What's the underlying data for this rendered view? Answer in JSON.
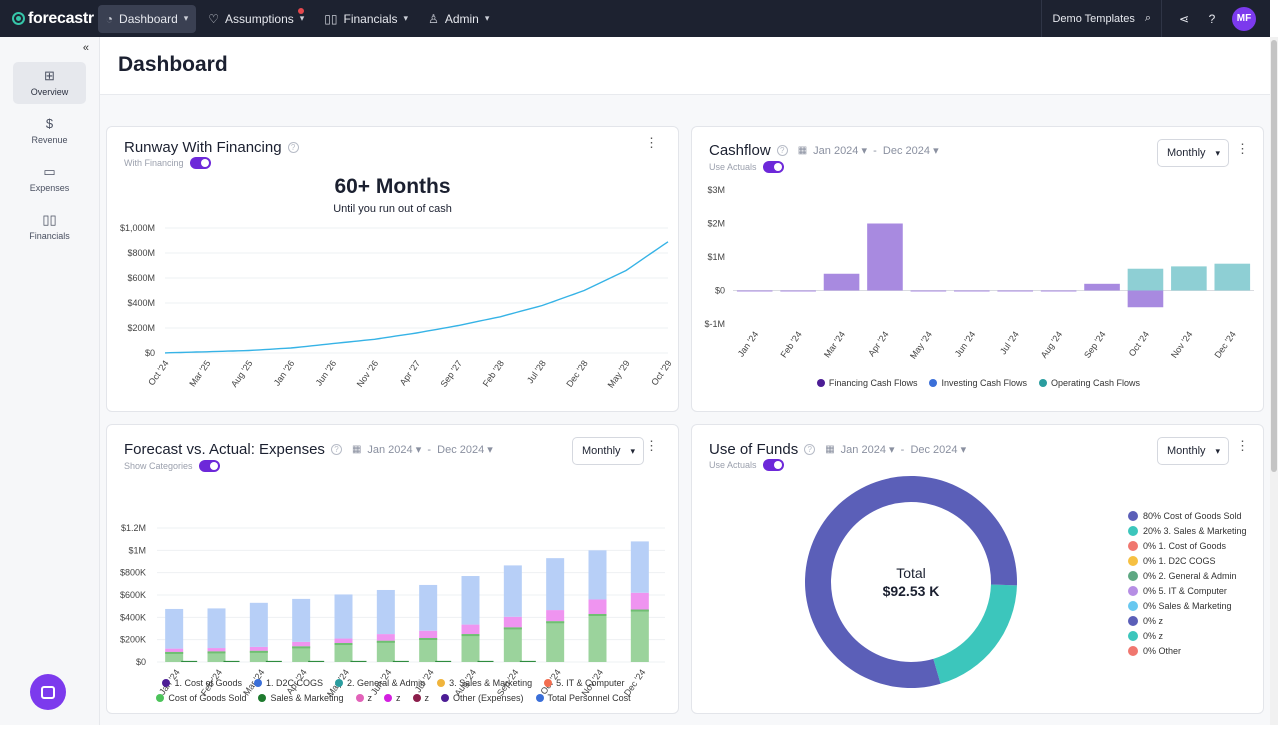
{
  "app": {
    "brand": "forecastr"
  },
  "nav": {
    "items": [
      {
        "label": "Dashboard",
        "icon": "gauge-icon",
        "active": true
      },
      {
        "label": "Assumptions",
        "icon": "lightbulb-icon",
        "active": false
      },
      {
        "label": "Financials",
        "icon": "book-icon",
        "active": false
      },
      {
        "label": "Admin",
        "icon": "user-gear-icon",
        "active": false
      }
    ],
    "templates_label": "Demo Templates",
    "avatar_initials": "MF"
  },
  "sidebar": {
    "items": [
      {
        "label": "Overview",
        "icon": "grid-icon"
      },
      {
        "label": "Revenue",
        "icon": "dollar-icon"
      },
      {
        "label": "Expenses",
        "icon": "card-icon"
      },
      {
        "label": "Financials",
        "icon": "book-icon"
      }
    ]
  },
  "page": {
    "title": "Dashboard"
  },
  "runway": {
    "title": "Runway With Financing",
    "toggle_label": "With Financing",
    "big_number": "60+ Months",
    "big_sub": "Until you run out of cash"
  },
  "cashflow": {
    "title": "Cashflow",
    "date_start": "Jan 2024",
    "date_sep": "-",
    "date_end": "Dec 2024",
    "toggle_label": "Use Actuals",
    "period": "Monthly"
  },
  "expenses": {
    "title": "Forecast vs. Actual: Expenses",
    "date_start": "Jan 2024",
    "date_sep": "-",
    "date_end": "Dec 2024",
    "toggle_label": "Show Categories",
    "period": "Monthly"
  },
  "funds": {
    "title": "Use of Funds",
    "date_start": "Jan 2024",
    "date_sep": "-",
    "date_end": "Dec 2024",
    "toggle_label": "Use Actuals",
    "period": "Monthly",
    "total_label": "Total",
    "total_value": "$92.53 K"
  },
  "chart_data": [
    {
      "id": "runway",
      "type": "line",
      "title": "Runway With Financing",
      "categories": [
        "Oct '24",
        "Mar '25",
        "Aug '25",
        "Jan '26",
        "Jun '26",
        "Nov '26",
        "Apr '27",
        "Sep '27",
        "Feb '28",
        "Jul '28",
        "Dec '28",
        "May '29",
        "Oct '29"
      ],
      "y_ticks": [
        "$0",
        "$200M",
        "$400M",
        "$600M",
        "$800M",
        "$1,000M"
      ],
      "ylim": [
        0,
        1000
      ],
      "series": [
        {
          "name": "Cash",
          "color": "#36b3e6",
          "values": [
            1,
            10,
            20,
            40,
            75,
            110,
            160,
            220,
            290,
            380,
            500,
            660,
            890
          ]
        }
      ]
    },
    {
      "id": "cashflow",
      "type": "bar",
      "title": "Cashflow",
      "categories": [
        "Jan '24",
        "Feb '24",
        "Mar '24",
        "Apr '24",
        "May '24",
        "Jun '24",
        "Jul '24",
        "Aug '24",
        "Sep '24",
        "Oct '24",
        "Nov '24",
        "Dec '24"
      ],
      "y_ticks": [
        "$-1M",
        "$0",
        "$1M",
        "$2M",
        "$3M"
      ],
      "ylim": [
        -1,
        3
      ],
      "series": [
        {
          "name": "Financing Cash Flows",
          "color": "#4c1d95",
          "values": [
            -0.02,
            -0.02,
            0.5,
            2.0,
            -0.01,
            -0.02,
            -0.02,
            -0.02,
            0.2,
            -0.5,
            0,
            0
          ]
        },
        {
          "name": "Investing Cash Flows",
          "color": "#3b6fd8",
          "values": [
            0,
            0,
            0,
            0,
            0,
            0,
            0,
            0,
            0,
            0,
            0,
            0
          ]
        },
        {
          "name": "Operating Cash Flows",
          "color": "#2a9d9f",
          "values": [
            0,
            0,
            0,
            0,
            0,
            0,
            0,
            0,
            0,
            0.65,
            0.72,
            0.8
          ]
        }
      ]
    },
    {
      "id": "expenses",
      "type": "bar",
      "title": "Forecast vs. Actual: Expenses",
      "categories": [
        "Jan '24",
        "Feb '24",
        "Mar '24",
        "Apr '24",
        "May '24",
        "Jun '24",
        "Jul '24",
        "Aug '24",
        "Sep '24",
        "Oct '24",
        "Nov '24",
        "Dec '24"
      ],
      "y_ticks": [
        "$0",
        "$200K",
        "$400K",
        "$600K",
        "$800K",
        "$1M",
        "$1.2M"
      ],
      "ylim": [
        0,
        1200
      ],
      "forecast_stack": {
        "cogs": [
          90,
          95,
          100,
          140,
          170,
          190,
          215,
          250,
          310,
          365,
          430,
          470
        ],
        "sales_marketing": [
          30,
          30,
          35,
          40,
          40,
          60,
          65,
          85,
          95,
          100,
          130,
          150
        ],
        "personnel": [
          355,
          355,
          395,
          385,
          395,
          395,
          410,
          435,
          460,
          465,
          440,
          460
        ]
      },
      "actual_values": [
        10,
        10,
        10,
        10,
        10,
        10,
        10,
        10,
        10,
        0,
        0,
        0
      ],
      "legend": [
        {
          "name": "1. Cost of Goods",
          "color": "#4c1d95"
        },
        {
          "name": "1. D2C COGS",
          "color": "#3b6fd8"
        },
        {
          "name": "2. General & Admin",
          "color": "#2a9d9f"
        },
        {
          "name": "3. Sales & Marketing",
          "color": "#f0b43c"
        },
        {
          "name": "5. IT & Computer",
          "color": "#f26d4f"
        },
        {
          "name": "Cost of Goods Sold",
          "color": "#4cc35a"
        },
        {
          "name": "Sales & Marketing",
          "color": "#1e7a2e"
        },
        {
          "name": "z",
          "color": "#e262b9"
        },
        {
          "name": "z",
          "color": "#d31fe0"
        },
        {
          "name": "z",
          "color": "#8b1e4a"
        },
        {
          "name": "Other (Expenses)",
          "color": "#4c1d95"
        },
        {
          "name": "Total Personnel Cost",
          "color": "#3b6fd8"
        }
      ]
    },
    {
      "id": "funds",
      "type": "pie",
      "title": "Use of Funds",
      "slices": [
        {
          "name": "80% Cost of Goods Sold",
          "value": 80,
          "color": "#5b5fb8"
        },
        {
          "name": "20% 3. Sales & Marketing",
          "value": 20,
          "color": "#3cc6bc"
        },
        {
          "name": "0% 1. Cost of Goods",
          "value": 0,
          "color": "#f0776f"
        },
        {
          "name": "0% 1. D2C COGS",
          "value": 0,
          "color": "#f6c042"
        },
        {
          "name": "0% 2. General & Admin",
          "value": 0,
          "color": "#5ea882"
        },
        {
          "name": "0% 5. IT & Computer",
          "value": 0,
          "color": "#b68ee4"
        },
        {
          "name": "0% Sales & Marketing",
          "value": 0,
          "color": "#68c8f0"
        },
        {
          "name": "0% z",
          "value": 0,
          "color": "#5b5fb8"
        },
        {
          "name": "0% z",
          "value": 0,
          "color": "#3cc6bc"
        },
        {
          "name": "0% Other",
          "value": 0,
          "color": "#f0776f"
        }
      ]
    }
  ]
}
